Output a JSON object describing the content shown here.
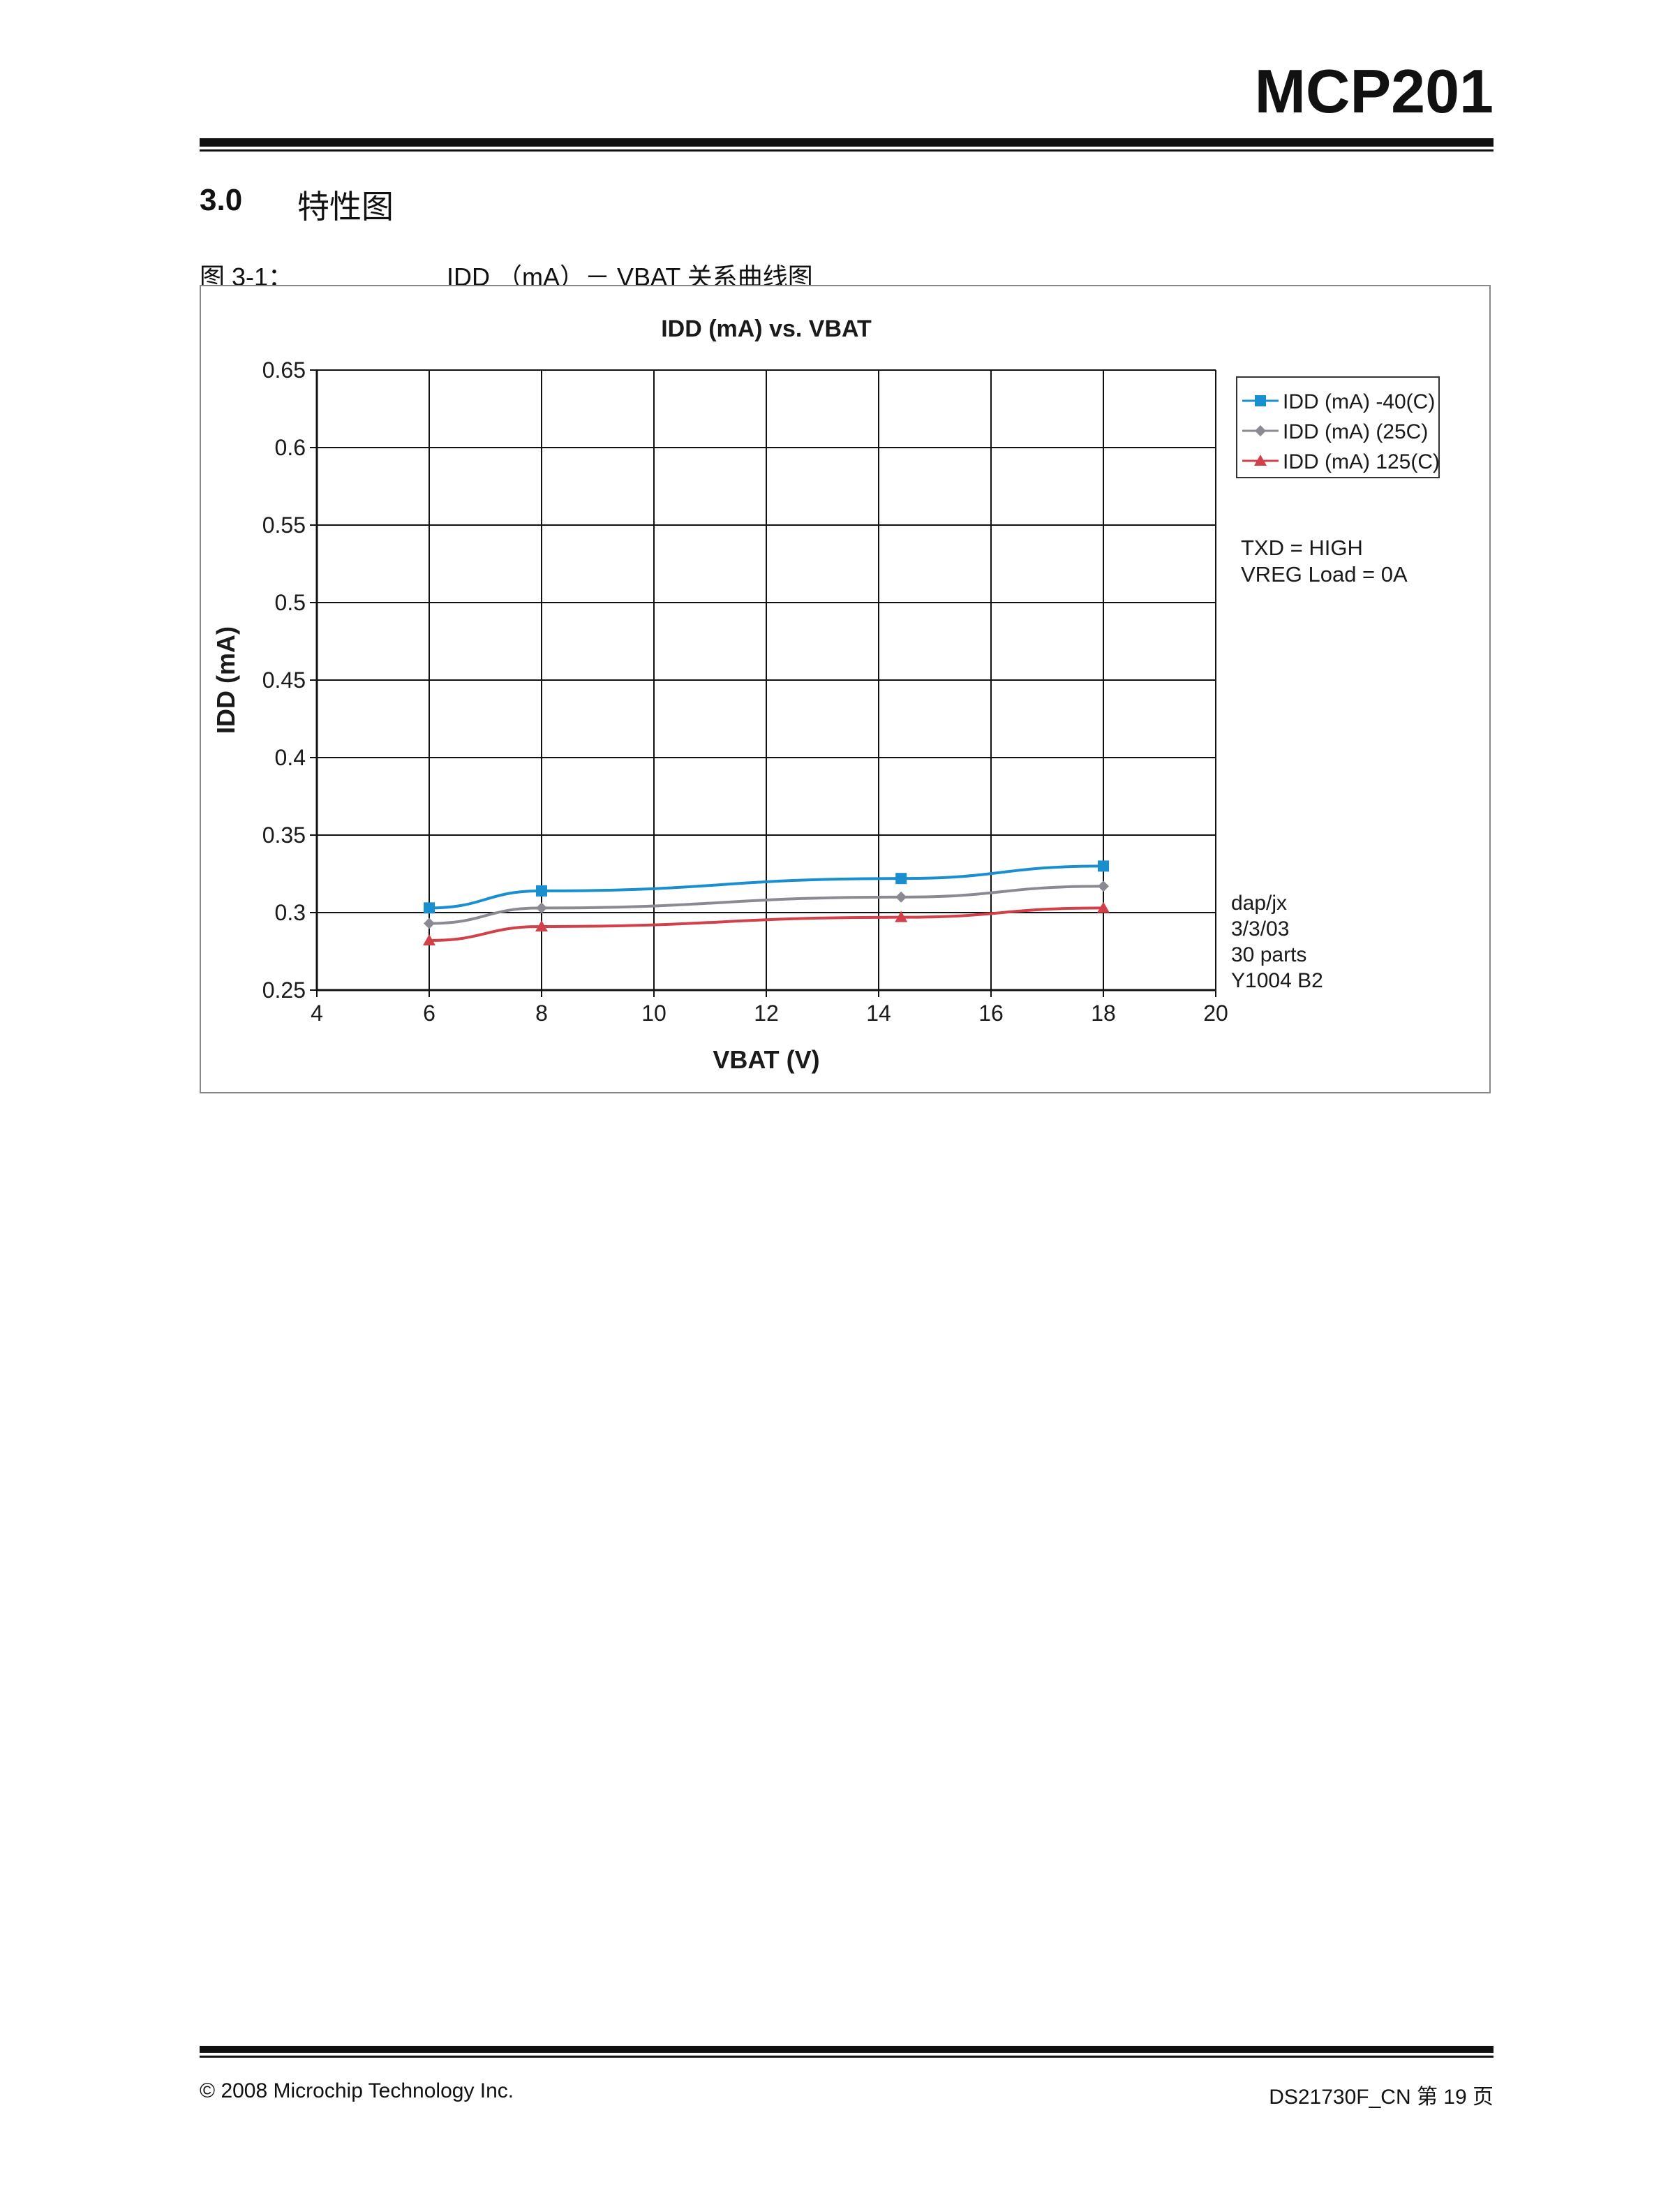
{
  "header": {
    "doc_title": "MCP201"
  },
  "section": {
    "number": "3.0",
    "title": "特性图"
  },
  "figure": {
    "label": "图 3-1：",
    "caption": "IDD （mA）－ VBAT 关系曲线图"
  },
  "chart_data": {
    "type": "line",
    "title": "IDD (mA) vs. VBAT",
    "xlabel": "VBAT (V)",
    "ylabel": "IDD (mA)",
    "xlim": [
      4,
      20
    ],
    "ylim": [
      0.25,
      0.65
    ],
    "xticks": [
      "4",
      "6",
      "8",
      "10",
      "12",
      "14",
      "16",
      "18",
      "20"
    ],
    "yticks": [
      "0.65",
      "0.6",
      "0.55",
      "0.5",
      "0.45",
      "0.4",
      "0.35",
      "0.3",
      "0.25"
    ],
    "grid": true,
    "legend_position": "top-right",
    "series": [
      {
        "name": "IDD (mA) -40(C)",
        "color": "#1a8fd0",
        "marker": "square",
        "x": [
          6,
          8,
          14.4,
          18
        ],
        "y": [
          0.303,
          0.314,
          0.322,
          0.33
        ]
      },
      {
        "name": "IDD (mA) (25C)",
        "color": "#8a8a92",
        "marker": "diamond",
        "x": [
          6,
          8,
          14.4,
          18
        ],
        "y": [
          0.293,
          0.303,
          0.31,
          0.317
        ]
      },
      {
        "name": "IDD (mA) 125(C)",
        "color": "#d2404a",
        "marker": "triangle",
        "x": [
          6,
          8,
          14.4,
          18
        ],
        "y": [
          0.282,
          0.291,
          0.297,
          0.303
        ]
      }
    ],
    "conditions": [
      "TXD = HIGH",
      "VREG Load = 0A"
    ],
    "notes": [
      "dap/jx",
      "3/3/03",
      "30 parts",
      "Y1004 B2"
    ]
  },
  "footer": {
    "copyright": "© 2008 Microchip Technology Inc.",
    "doc_page": "DS21730F_CN 第 19 页"
  }
}
